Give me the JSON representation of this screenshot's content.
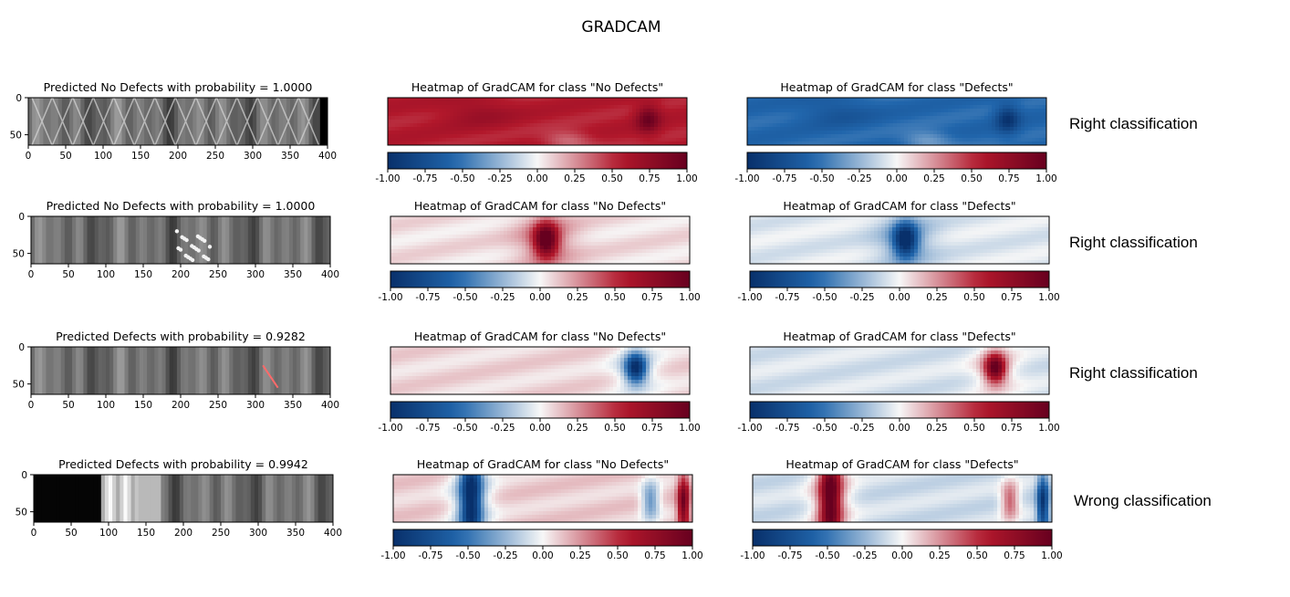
{
  "title": "GRADCAM",
  "chart_data": {
    "type": "heatmap",
    "suptitle": "GRADCAM",
    "image_axis": {
      "xticks": [
        0,
        50,
        100,
        150,
        200,
        250,
        300,
        350,
        400
      ],
      "yticks": [
        0,
        50
      ],
      "xlim": [
        0,
        400
      ],
      "ylim": [
        64,
        0
      ]
    },
    "colorbar": {
      "ticks": [
        "-1.00",
        "-0.75",
        "-0.50",
        "-0.25",
        "0.00",
        "0.25",
        "0.50",
        "0.75",
        "1.00"
      ],
      "range": [
        -1,
        1
      ],
      "colormap": "RdBu_r"
    },
    "colors": {
      "min": "#08306b",
      "neg": "#2166ac",
      "mid": "#f7f7f7",
      "pos": "#b2182b",
      "max": "#67001f"
    },
    "rows": [
      {
        "pred_title": "Predicted No Defects with probability = 1.0000",
        "class": "No Defects",
        "probability": 1.0,
        "heat_nd_title": "Heatmap of GradCAM for class \"No Defects\"",
        "heat_d_title": "Heatmap of GradCAM for class \"Defects\"",
        "verdict": "Right classification",
        "nd_base": 0.55,
        "blobs": [
          {
            "x": 0.87,
            "y": 0.45,
            "sx": 0.04,
            "sy": 0.3,
            "v": 0.4
          },
          {
            "x": 0.3,
            "y": 0.3,
            "sx": 0.12,
            "sy": 0.3,
            "v": 0.15
          },
          {
            "x": 0.6,
            "y": 0.9,
            "sx": 0.08,
            "sy": 0.2,
            "v": -0.25
          }
        ],
        "defect_marks": []
      },
      {
        "pred_title": "Predicted No Defects with probability = 1.0000",
        "class": "No Defects",
        "probability": 1.0,
        "heat_nd_title": "Heatmap of GradCAM for class \"No Defects\"",
        "heat_d_title": "Heatmap of GradCAM for class \"Defects\"",
        "verdict": "Right classification",
        "nd_base": 0.06,
        "blobs": [
          {
            "x": 0.52,
            "y": 0.5,
            "sx": 0.04,
            "sy": 0.35,
            "v": 0.9
          },
          {
            "x": 0.52,
            "y": 0.5,
            "sx": 0.1,
            "sy": 0.6,
            "v": 0.25
          }
        ],
        "defect_marks": [
          {
            "x0": 195,
            "x1": 240,
            "y0": 20,
            "y1": 60
          }
        ]
      },
      {
        "pred_title": "Predicted Defects with probability = 0.9282",
        "class": "Defects",
        "probability": 0.9282,
        "heat_nd_title": "Heatmap of GradCAM for class \"No Defects\"",
        "heat_d_title": "Heatmap of GradCAM for class \"Defects\"",
        "verdict": "Right classification",
        "nd_base": 0.08,
        "blobs": [
          {
            "x": 0.82,
            "y": 0.45,
            "sx": 0.035,
            "sy": 0.3,
            "v": -0.95
          },
          {
            "x": 0.82,
            "y": 0.45,
            "sx": 0.08,
            "sy": 0.6,
            "v": -0.2
          }
        ],
        "defect_marks": [
          {
            "x0": 310,
            "x1": 330,
            "y0": 25,
            "y1": 55
          }
        ]
      },
      {
        "pred_title": "Predicted Defects with probability = 0.9942",
        "class": "Defects",
        "probability": 0.9942,
        "heat_nd_title": "Heatmap of GradCAM for class \"No Defects\"",
        "heat_d_title": "Heatmap of GradCAM for class \"Defects\"",
        "verdict": "Wrong classification",
        "nd_base": 0.1,
        "blobs": [
          {
            "x": 0.26,
            "y": 0.5,
            "sx": 0.035,
            "sy": 1.2,
            "v": -0.9
          },
          {
            "x": 0.26,
            "y": 0.5,
            "sx": 0.07,
            "sy": 1.2,
            "v": -0.3
          },
          {
            "x": 0.97,
            "y": 0.6,
            "sx": 0.02,
            "sy": 0.6,
            "v": 0.85
          },
          {
            "x": 0.86,
            "y": 0.55,
            "sx": 0.03,
            "sy": 0.4,
            "v": -0.5
          }
        ],
        "defect_marks": []
      }
    ]
  }
}
